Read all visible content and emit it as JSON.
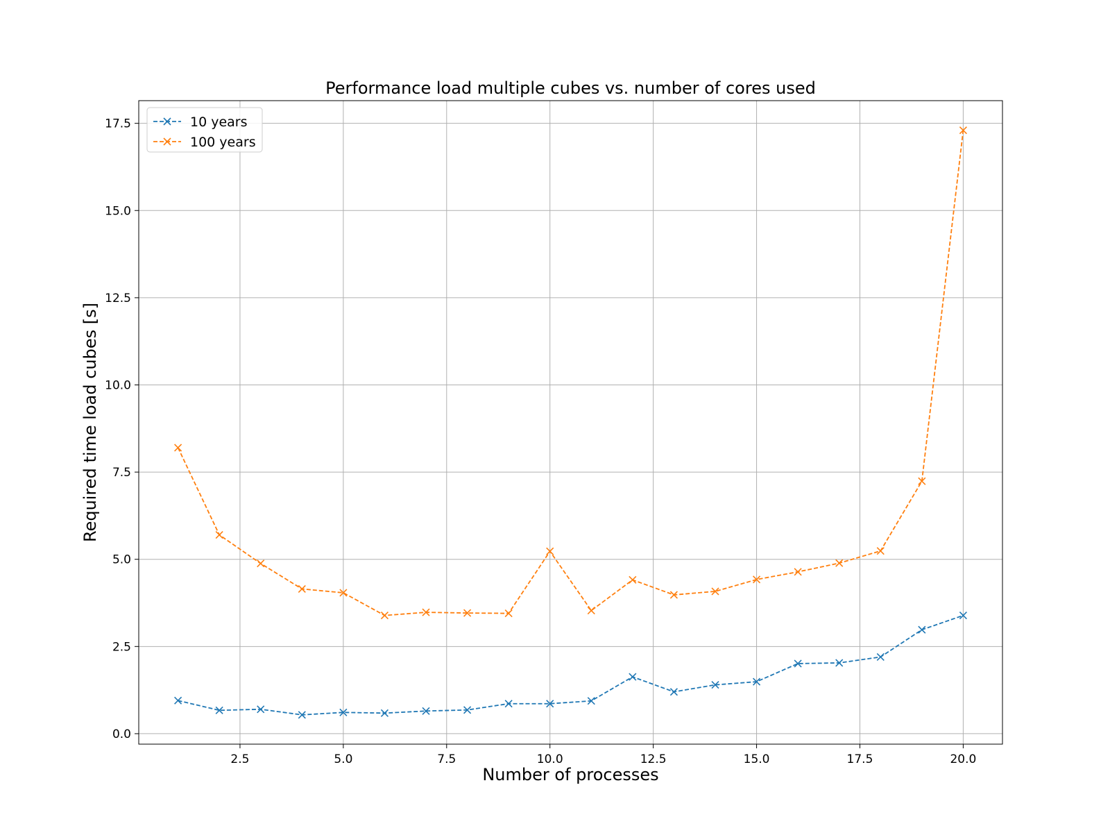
{
  "chart_data": {
    "type": "line",
    "title": "Performance load multiple cubes vs. number of cores used",
    "xlabel": "Number of processes",
    "ylabel": "Required time load cubes [s]",
    "xlim": [
      0.05,
      20.95
    ],
    "ylim": [
      -0.3,
      18.15
    ],
    "xticks": [
      2.5,
      5.0,
      7.5,
      10.0,
      12.5,
      15.0,
      17.5,
      20.0
    ],
    "xtick_labels": [
      "2.5",
      "5.0",
      "7.5",
      "10.0",
      "12.5",
      "15.0",
      "17.5",
      "20.0"
    ],
    "yticks": [
      0.0,
      2.5,
      5.0,
      7.5,
      10.0,
      12.5,
      15.0,
      17.5
    ],
    "ytick_labels": [
      "0.0",
      "2.5",
      "5.0",
      "7.5",
      "10.0",
      "12.5",
      "15.0",
      "17.5"
    ],
    "grid": true,
    "legend_position": "top-left",
    "line_style": "dashed",
    "marker": "x",
    "x": [
      1,
      2,
      3,
      4,
      5,
      6,
      7,
      8,
      9,
      10,
      11,
      12,
      13,
      14,
      15,
      16,
      17,
      18,
      19,
      20
    ],
    "series": [
      {
        "name": "10 years",
        "color": "#1f77b4",
        "values": [
          0.95,
          0.67,
          0.7,
          0.54,
          0.61,
          0.59,
          0.65,
          0.68,
          0.86,
          0.86,
          0.94,
          1.63,
          1.2,
          1.4,
          1.49,
          2.01,
          2.03,
          2.2,
          2.98,
          3.39
        ]
      },
      {
        "name": "100 years",
        "color": "#ff7f0e",
        "values": [
          8.2,
          5.7,
          4.88,
          4.15,
          4.04,
          3.39,
          3.48,
          3.46,
          3.45,
          5.23,
          3.53,
          4.41,
          3.98,
          4.08,
          4.42,
          4.64,
          4.89,
          5.24,
          7.24,
          17.3
        ]
      }
    ]
  }
}
